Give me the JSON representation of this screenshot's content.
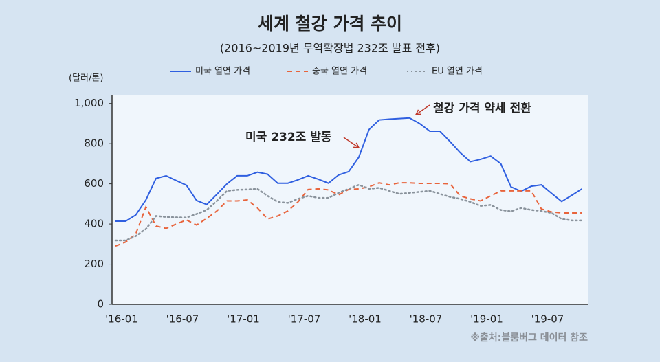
{
  "chart_data": {
    "type": "line",
    "title": "세계 철강 가격 추이",
    "subtitle": "(2016~2019년 무역확장법 232조 발표 전후)",
    "y_axis_label": "(달러/톤)",
    "source": "※출처:블룸버그 데이터 참조",
    "annotations": [
      {
        "text": "미국 232조 발동"
      },
      {
        "text": "철강 가격 약세 전환"
      }
    ],
    "categories": [
      "'16-01",
      null,
      null,
      null,
      null,
      null,
      "'16-07",
      null,
      null,
      null,
      null,
      null,
      "'17-01",
      null,
      null,
      null,
      null,
      null,
      "'17-07",
      null,
      null,
      null,
      null,
      null,
      "'18-01",
      null,
      null,
      null,
      null,
      null,
      "'18-07",
      null,
      null,
      null,
      null,
      null,
      "'19-01",
      null,
      null,
      null,
      null,
      null,
      "'19-07",
      null,
      null,
      null,
      null
    ],
    "series": [
      {
        "name": "미국 열연 가격",
        "color": "#2f5fe0",
        "dash": "solid",
        "values": [
          414,
          414,
          445,
          520,
          627,
          640,
          616,
          593,
          517,
          497,
          548,
          600,
          640,
          640,
          658,
          648,
          603,
          603,
          620,
          640,
          623,
          603,
          644,
          661,
          733,
          870,
          918,
          922,
          925,
          928,
          900,
          862,
          862,
          810,
          755,
          710,
          722,
          738,
          700,
          585,
          563,
          588,
          595,
          553,
          512,
          543,
          575
        ]
      },
      {
        "name": "중국 열연 가격",
        "color": "#e8643c",
        "dash": "dashed",
        "values": [
          290,
          310,
          350,
          485,
          390,
          378,
          400,
          420,
          395,
          428,
          465,
          515,
          515,
          520,
          480,
          425,
          440,
          465,
          510,
          572,
          575,
          570,
          545,
          572,
          575,
          585,
          605,
          595,
          605,
          605,
          602,
          602,
          602,
          600,
          540,
          525,
          515,
          540,
          565,
          565,
          565,
          565,
          475,
          460,
          455,
          455,
          455
        ]
      },
      {
        "name": "EU 열연 가격",
        "color": "#8a939c",
        "dash": "dotted",
        "values": [
          318,
          318,
          340,
          375,
          440,
          435,
          433,
          432,
          450,
          470,
          515,
          565,
          570,
          572,
          575,
          540,
          510,
          505,
          525,
          540,
          530,
          530,
          555,
          575,
          595,
          575,
          580,
          565,
          550,
          555,
          560,
          565,
          550,
          535,
          525,
          510,
          490,
          495,
          470,
          463,
          480,
          470,
          465,
          455,
          425,
          418,
          418
        ]
      }
    ],
    "ylim": [
      0,
      1040
    ],
    "yticks": [
      0,
      200,
      400,
      600,
      800,
      {
        "value": 1000,
        "label": "1,000"
      }
    ],
    "legend": "top"
  }
}
